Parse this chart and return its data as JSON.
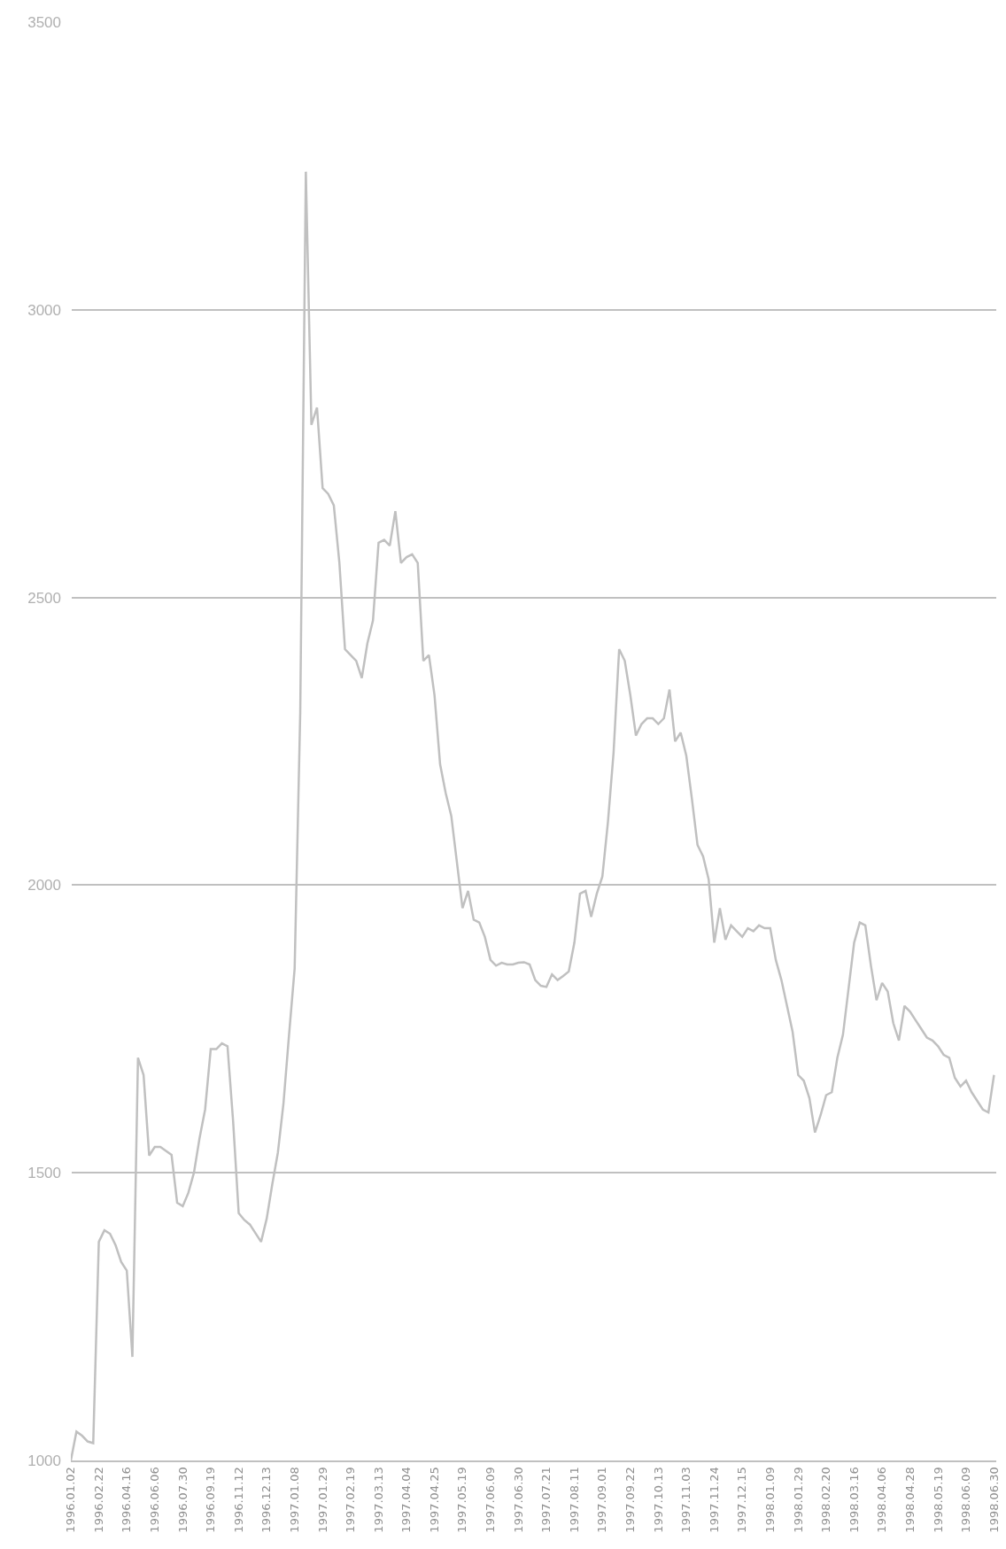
{
  "chart_data": {
    "type": "line",
    "categories": [
      "1996.01.02",
      null,
      null,
      null,
      null,
      "1996.02.22",
      null,
      null,
      null,
      null,
      "1996.04.16",
      null,
      null,
      null,
      null,
      "1996.06.06",
      null,
      null,
      null,
      null,
      "1996.07.30",
      null,
      null,
      null,
      null,
      "1996.09.19",
      null,
      null,
      null,
      null,
      "1996.11.12",
      null,
      null,
      null,
      null,
      "1996.12.13",
      null,
      null,
      null,
      null,
      "1997.01.08",
      null,
      null,
      null,
      null,
      "1997.01.29",
      null,
      null,
      null,
      null,
      "1997.02.19",
      null,
      null,
      null,
      null,
      "1997.03.13",
      null,
      null,
      null,
      null,
      "1997.04.04",
      null,
      null,
      null,
      null,
      "1997.04.25",
      null,
      null,
      null,
      null,
      "1997.05.19",
      null,
      null,
      null,
      null,
      "1997.06.09",
      null,
      null,
      null,
      null,
      "1997.06.30",
      null,
      null,
      null,
      null,
      "1997.07.21",
      null,
      null,
      null,
      null,
      "1997.08.11",
      null,
      null,
      null,
      null,
      "1997.09.01",
      null,
      null,
      null,
      null,
      "1997.09.22",
      null,
      null,
      null,
      null,
      "1997.10.13",
      null,
      null,
      null,
      null,
      "1997.11.03",
      null,
      null,
      null,
      null,
      "1997.11.24",
      null,
      null,
      null,
      null,
      "1997.12.15",
      null,
      null,
      null,
      null,
      "1998.01.09",
      null,
      null,
      null,
      null,
      "1998.01.29",
      null,
      null,
      null,
      null,
      "1998.02.20",
      null,
      null,
      null,
      null,
      "1998.03.16",
      null,
      null,
      null,
      null,
      "1998.04.06",
      null,
      null,
      null,
      null,
      "1998.04.28",
      null,
      null,
      null,
      null,
      "1998.05.19",
      null,
      null,
      null,
      null,
      "1998.06.09",
      null,
      null,
      null,
      null,
      "1998.06.30"
    ],
    "series": [
      {
        "color": "#c0c0c0",
        "values": [
          1000,
          1050,
          1043,
          1033,
          1030,
          1380,
          1400,
          1394,
          1374,
          1345,
          1330,
          1180,
          1700,
          1670,
          1530,
          1545,
          1545,
          1538,
          1531,
          1448,
          1442,
          1465,
          1500,
          1560,
          1610,
          1715,
          1715,
          1725,
          1720,
          1590,
          1430,
          1418,
          1410,
          1395,
          1380,
          1420,
          1480,
          1535,
          1620,
          1740,
          1855,
          2300,
          3240,
          2800,
          2830,
          2690,
          2680,
          2660,
          2560,
          2410,
          2400,
          2390,
          2360,
          2420,
          2460,
          2595,
          2600,
          2590,
          2650,
          2560,
          2570,
          2575,
          2560,
          2390,
          2400,
          2330,
          2210,
          2160,
          2120,
          2040,
          1960,
          1990,
          1940,
          1935,
          1910,
          1870,
          1860,
          1865,
          1862,
          1862,
          1865,
          1866,
          1862,
          1835,
          1825,
          1823,
          1845,
          1835,
          1842,
          1850,
          1900,
          1985,
          1990,
          1945,
          1985,
          2015,
          2110,
          2230,
          2410,
          2390,
          2330,
          2260,
          2280,
          2290,
          2290,
          2280,
          2290,
          2340,
          2250,
          2265,
          2225,
          2150,
          2070,
          2050,
          2010,
          1900,
          1960,
          1905,
          1930,
          1920,
          1910,
          1925,
          1920,
          1930,
          1925,
          1925,
          1870,
          1835,
          1790,
          1745,
          1670,
          1660,
          1630,
          1570,
          1600,
          1635,
          1640,
          1700,
          1740,
          1820,
          1900,
          1935,
          1930,
          1860,
          1800,
          1830,
          1815,
          1760,
          1730,
          1790,
          1780,
          1765,
          1750,
          1735,
          1730,
          1720,
          1705,
          1700,
          1665,
          1650,
          1660,
          1640,
          1625,
          1610,
          1605,
          1670
        ]
      }
    ],
    "ylim": [
      1000,
      3500
    ],
    "yticks": [
      1000,
      1500,
      2000,
      2500,
      3000,
      3500
    ],
    "grid": "y",
    "marker": "none",
    "line_style": "solid"
  }
}
